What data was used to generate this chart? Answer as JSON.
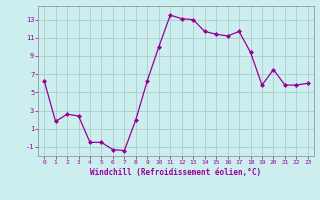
{
  "x": [
    0,
    1,
    2,
    3,
    4,
    5,
    6,
    7,
    8,
    9,
    10,
    11,
    12,
    13,
    14,
    15,
    16,
    17,
    18,
    19,
    20,
    21,
    22,
    23
  ],
  "y": [
    6.3,
    1.8,
    2.6,
    2.4,
    -0.5,
    -0.5,
    -1.3,
    -1.4,
    2.0,
    6.3,
    10.0,
    13.5,
    13.1,
    13.0,
    11.7,
    11.4,
    11.2,
    11.7,
    9.4,
    5.8,
    7.5,
    5.8,
    5.8,
    6.0
  ],
  "line_color": "#990099",
  "marker": "D",
  "marker_size": 2,
  "bg_color": "#cceeee",
  "grid_color": "#aacccc",
  "ylabel_ticks": [
    -1,
    1,
    3,
    5,
    7,
    9,
    11,
    13
  ],
  "xlabel": "Windchill (Refroidissement éolien,°C)",
  "xlim": [
    -0.5,
    23.5
  ],
  "ylim": [
    -2.0,
    14.5
  ],
  "spine_color": "#888888"
}
